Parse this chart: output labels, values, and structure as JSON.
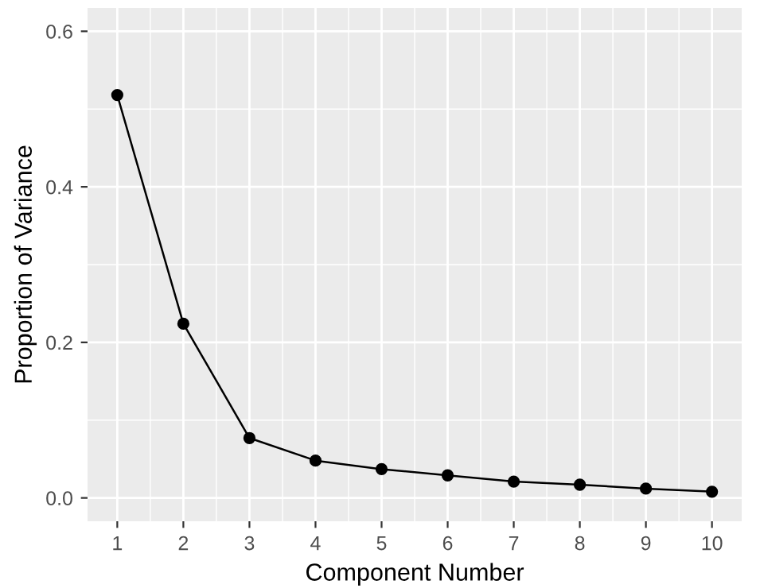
{
  "chart_data": {
    "type": "line",
    "xlabel": "Component Number",
    "ylabel": "Proportion of Variance",
    "x": [
      1,
      2,
      3,
      4,
      5,
      6,
      7,
      8,
      9,
      10
    ],
    "series": [
      {
        "color": "#000000",
        "values": [
          0.518,
          0.224,
          0.077,
          0.048,
          0.037,
          0.029,
          0.021,
          0.017,
          0.012,
          0.008
        ]
      }
    ],
    "xlim": [
      0.55,
      10.45
    ],
    "xticks": [
      1,
      2,
      3,
      4,
      5,
      6,
      7,
      8,
      9,
      10
    ],
    "ylim": [
      -0.03,
      0.63
    ],
    "yticks": [
      {
        "value": 0,
        "label": "0.0"
      },
      0.2,
      0.4,
      0.6
    ],
    "grid": true,
    "marker": "circle",
    "line_style": "solid"
  }
}
